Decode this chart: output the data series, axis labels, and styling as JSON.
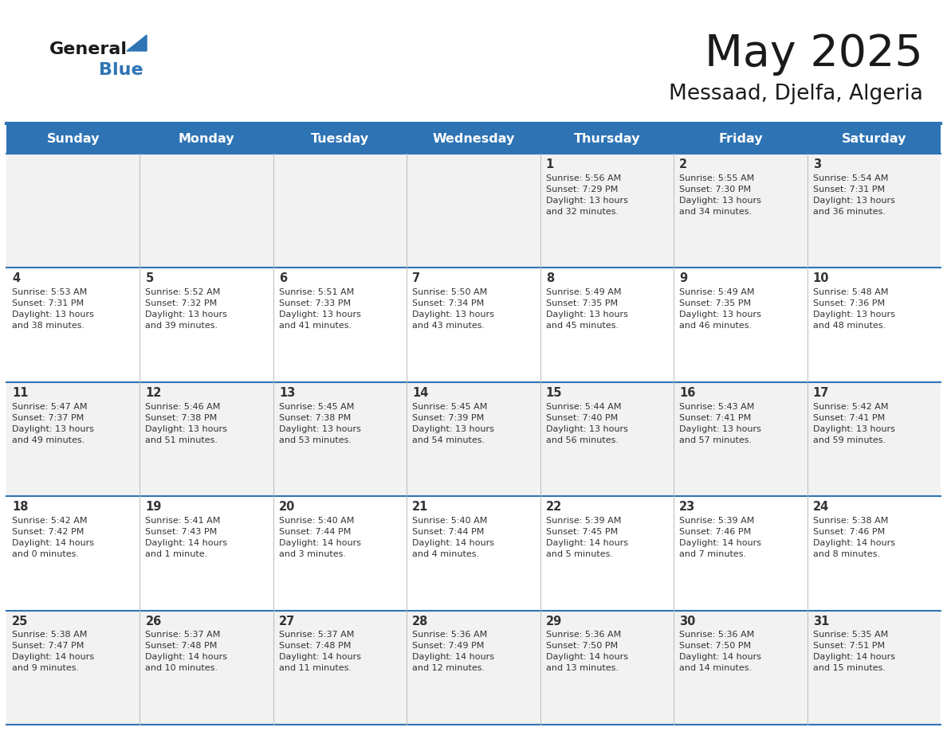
{
  "title": "May 2025",
  "subtitle": "Messaad, Djelfa, Algeria",
  "header_bg": "#2E74B5",
  "header_text_color": "#FFFFFF",
  "cell_bg_odd": "#F2F2F2",
  "cell_bg_even": "#FFFFFF",
  "grid_line_color": "#2E74B5",
  "day_headers": [
    "Sunday",
    "Monday",
    "Tuesday",
    "Wednesday",
    "Thursday",
    "Friday",
    "Saturday"
  ],
  "title_color": "#1a1a1a",
  "subtitle_color": "#1a1a1a",
  "cell_text_color": "#333333",
  "days": [
    {
      "day": 1,
      "col": 4,
      "row": 0,
      "sunrise": "5:56 AM",
      "sunset": "7:29 PM",
      "daylight": "13 hours and 32 minutes"
    },
    {
      "day": 2,
      "col": 5,
      "row": 0,
      "sunrise": "5:55 AM",
      "sunset": "7:30 PM",
      "daylight": "13 hours and 34 minutes"
    },
    {
      "day": 3,
      "col": 6,
      "row": 0,
      "sunrise": "5:54 AM",
      "sunset": "7:31 PM",
      "daylight": "13 hours and 36 minutes"
    },
    {
      "day": 4,
      "col": 0,
      "row": 1,
      "sunrise": "5:53 AM",
      "sunset": "7:31 PM",
      "daylight": "13 hours and 38 minutes"
    },
    {
      "day": 5,
      "col": 1,
      "row": 1,
      "sunrise": "5:52 AM",
      "sunset": "7:32 PM",
      "daylight": "13 hours and 39 minutes"
    },
    {
      "day": 6,
      "col": 2,
      "row": 1,
      "sunrise": "5:51 AM",
      "sunset": "7:33 PM",
      "daylight": "13 hours and 41 minutes"
    },
    {
      "day": 7,
      "col": 3,
      "row": 1,
      "sunrise": "5:50 AM",
      "sunset": "7:34 PM",
      "daylight": "13 hours and 43 minutes"
    },
    {
      "day": 8,
      "col": 4,
      "row": 1,
      "sunrise": "5:49 AM",
      "sunset": "7:35 PM",
      "daylight": "13 hours and 45 minutes"
    },
    {
      "day": 9,
      "col": 5,
      "row": 1,
      "sunrise": "5:49 AM",
      "sunset": "7:35 PM",
      "daylight": "13 hours and 46 minutes"
    },
    {
      "day": 10,
      "col": 6,
      "row": 1,
      "sunrise": "5:48 AM",
      "sunset": "7:36 PM",
      "daylight": "13 hours and 48 minutes"
    },
    {
      "day": 11,
      "col": 0,
      "row": 2,
      "sunrise": "5:47 AM",
      "sunset": "7:37 PM",
      "daylight": "13 hours and 49 minutes"
    },
    {
      "day": 12,
      "col": 1,
      "row": 2,
      "sunrise": "5:46 AM",
      "sunset": "7:38 PM",
      "daylight": "13 hours and 51 minutes"
    },
    {
      "day": 13,
      "col": 2,
      "row": 2,
      "sunrise": "5:45 AM",
      "sunset": "7:38 PM",
      "daylight": "13 hours and 53 minutes"
    },
    {
      "day": 14,
      "col": 3,
      "row": 2,
      "sunrise": "5:45 AM",
      "sunset": "7:39 PM",
      "daylight": "13 hours and 54 minutes"
    },
    {
      "day": 15,
      "col": 4,
      "row": 2,
      "sunrise": "5:44 AM",
      "sunset": "7:40 PM",
      "daylight": "13 hours and 56 minutes"
    },
    {
      "day": 16,
      "col": 5,
      "row": 2,
      "sunrise": "5:43 AM",
      "sunset": "7:41 PM",
      "daylight": "13 hours and 57 minutes"
    },
    {
      "day": 17,
      "col": 6,
      "row": 2,
      "sunrise": "5:42 AM",
      "sunset": "7:41 PM",
      "daylight": "13 hours and 59 minutes"
    },
    {
      "day": 18,
      "col": 0,
      "row": 3,
      "sunrise": "5:42 AM",
      "sunset": "7:42 PM",
      "daylight": "14 hours and 0 minutes"
    },
    {
      "day": 19,
      "col": 1,
      "row": 3,
      "sunrise": "5:41 AM",
      "sunset": "7:43 PM",
      "daylight": "14 hours and 1 minute"
    },
    {
      "day": 20,
      "col": 2,
      "row": 3,
      "sunrise": "5:40 AM",
      "sunset": "7:44 PM",
      "daylight": "14 hours and 3 minutes"
    },
    {
      "day": 21,
      "col": 3,
      "row": 3,
      "sunrise": "5:40 AM",
      "sunset": "7:44 PM",
      "daylight": "14 hours and 4 minutes"
    },
    {
      "day": 22,
      "col": 4,
      "row": 3,
      "sunrise": "5:39 AM",
      "sunset": "7:45 PM",
      "daylight": "14 hours and 5 minutes"
    },
    {
      "day": 23,
      "col": 5,
      "row": 3,
      "sunrise": "5:39 AM",
      "sunset": "7:46 PM",
      "daylight": "14 hours and 7 minutes"
    },
    {
      "day": 24,
      "col": 6,
      "row": 3,
      "sunrise": "5:38 AM",
      "sunset": "7:46 PM",
      "daylight": "14 hours and 8 minutes"
    },
    {
      "day": 25,
      "col": 0,
      "row": 4,
      "sunrise": "5:38 AM",
      "sunset": "7:47 PM",
      "daylight": "14 hours and 9 minutes"
    },
    {
      "day": 26,
      "col": 1,
      "row": 4,
      "sunrise": "5:37 AM",
      "sunset": "7:48 PM",
      "daylight": "14 hours and 10 minutes"
    },
    {
      "day": 27,
      "col": 2,
      "row": 4,
      "sunrise": "5:37 AM",
      "sunset": "7:48 PM",
      "daylight": "14 hours and 11 minutes"
    },
    {
      "day": 28,
      "col": 3,
      "row": 4,
      "sunrise": "5:36 AM",
      "sunset": "7:49 PM",
      "daylight": "14 hours and 12 minutes"
    },
    {
      "day": 29,
      "col": 4,
      "row": 4,
      "sunrise": "5:36 AM",
      "sunset": "7:50 PM",
      "daylight": "14 hours and 13 minutes"
    },
    {
      "day": 30,
      "col": 5,
      "row": 4,
      "sunrise": "5:36 AM",
      "sunset": "7:50 PM",
      "daylight": "14 hours and 14 minutes"
    },
    {
      "day": 31,
      "col": 6,
      "row": 4,
      "sunrise": "5:35 AM",
      "sunset": "7:51 PM",
      "daylight": "14 hours and 15 minutes"
    }
  ]
}
